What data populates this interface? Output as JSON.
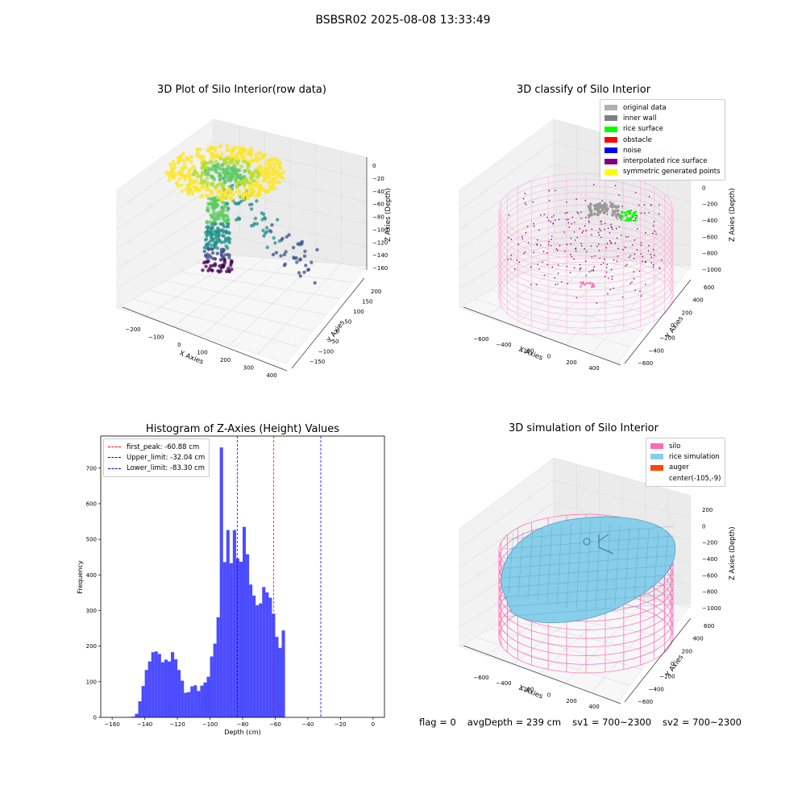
{
  "figure": {
    "suptitle": "BSBSR02 2025-08-08 13:33:49"
  },
  "panels": {
    "raw": {
      "title": "3D Plot of Silo Interior(row data)",
      "xlabel": "X Axies",
      "ylabel": "Y Axies",
      "zlabel": "Z Axies (Depth)",
      "xticks": [
        "-200",
        "-100",
        "0",
        "100",
        "200",
        "300",
        "400"
      ],
      "yticks": [
        "-150",
        "-100",
        "-50",
        "0",
        "50",
        "100",
        "150",
        "200"
      ],
      "zticks": [
        "0",
        "-20",
        "-40",
        "-60",
        "-80",
        "-100",
        "-120",
        "-140",
        "-160"
      ]
    },
    "classify": {
      "title": "3D classify of Silo Interior",
      "xlabel": "X Axies",
      "ylabel": "Y Axies",
      "zlabel": "Z Axies (Depth)",
      "xticks": [
        "-600",
        "-400",
        "-200",
        "0",
        "200",
        "400"
      ],
      "yticks": [
        "-600",
        "-400",
        "-200",
        "0",
        "200",
        "400",
        "600"
      ],
      "zticks": [
        "200",
        "0",
        "-200",
        "-400",
        "-600",
        "-800",
        "-1000"
      ],
      "legend": [
        {
          "label": "original data",
          "color": "#b0b0b0"
        },
        {
          "label": "inner wall",
          "color": "#808080"
        },
        {
          "label": "rice surface",
          "color": "#00ff00"
        },
        {
          "label": "obstacle",
          "color": "#ff0000"
        },
        {
          "label": "noise",
          "color": "#0000ff"
        },
        {
          "label": "interpolated rice surface",
          "color": "#800080"
        },
        {
          "label": "symmetric generated points",
          "color": "#ffff00"
        }
      ]
    },
    "simulation": {
      "title": "3D simulation of Silo Interior",
      "xlabel": "X Axies",
      "ylabel": "Y Axies",
      "zlabel": "Z Axies (Depth)",
      "xticks": [
        "-600",
        "-400",
        "-200",
        "0",
        "200",
        "400"
      ],
      "yticks": [
        "-600",
        "-400",
        "-200",
        "0",
        "200",
        "400",
        "600"
      ],
      "zticks": [
        "200",
        "0",
        "-200",
        "-400",
        "-600",
        "-800",
        "-1000"
      ],
      "legend": [
        {
          "label": "silo",
          "color": "#ff69b4"
        },
        {
          "label": "rice simulation",
          "color": "#87ceeb"
        },
        {
          "label": "auger",
          "color": "#ff4500"
        },
        {
          "label": "center(-105,-9)",
          "color": "#ffffff"
        }
      ]
    }
  },
  "footer": {
    "flag": "flag = 0",
    "avg_depth": "avgDepth = 239 cm",
    "sv1": "sv1 = 700~2300",
    "sv2": "sv2 = 700~2300"
  },
  "chart_data": [
    {
      "type": "histogram",
      "title": "Histogram of Z-Axies (Height) Values",
      "xlabel": "Depth (cm)",
      "ylabel": "Frequency",
      "xlim": [
        -167,
        7
      ],
      "ylim": [
        0,
        790
      ],
      "xticks": [
        -160,
        -140,
        -120,
        -100,
        -80,
        -60,
        -40,
        -20,
        0
      ],
      "yticks": [
        0,
        100,
        200,
        300,
        400,
        500,
        600,
        700
      ],
      "bar_color": "#0000ff",
      "bin_edges_start": -150,
      "bin_width": 2,
      "values": [
        1,
        2,
        10,
        45,
        88,
        133,
        157,
        183,
        185,
        178,
        155,
        162,
        157,
        183,
        163,
        133,
        103,
        69,
        71,
        87,
        90,
        74,
        89,
        98,
        114,
        171,
        207,
        281,
        758,
        436,
        526,
        433,
        526,
        446,
        437,
        535,
        458,
        373,
        342,
        315,
        320,
        366,
        351,
        336,
        291,
        226,
        195,
        244
      ],
      "vlines": [
        {
          "label": "first_peak: -60.88 cm",
          "x": -60.88,
          "color": "#ff0000"
        },
        {
          "label": "Upper_limit: -32.04 cm",
          "x": -32.04,
          "color": "#0000ff"
        },
        {
          "label": "Lower_limit: -83.30 cm",
          "x": -83.3,
          "color": "#0000ff"
        }
      ]
    }
  ]
}
